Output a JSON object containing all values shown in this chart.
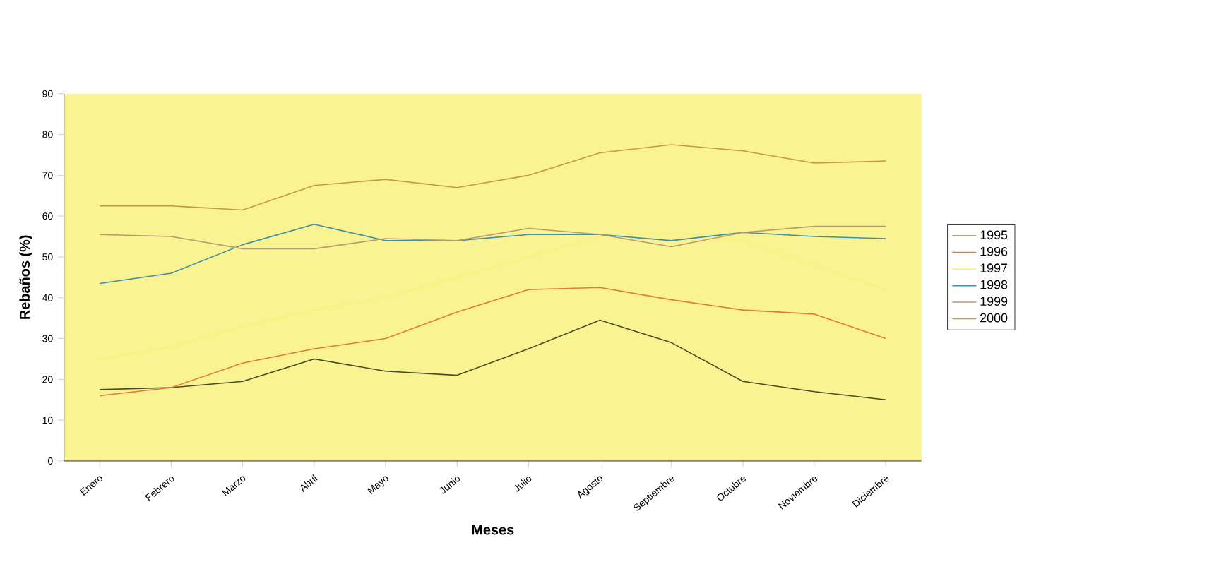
{
  "chart_data": {
    "type": "line",
    "xlabel": "Meses",
    "ylabel": "Rebaños (%)",
    "categories": [
      "Enero",
      "Febrero",
      "Marzo",
      "Abril",
      "Mayo",
      "Junio",
      "Julio",
      "Agosto",
      "Septiembre",
      "Octubre",
      "Noviembre",
      "Diciembre"
    ],
    "series": [
      {
        "name": "1995",
        "color": "#4a4a2a",
        "values": [
          17.5,
          18,
          19.5,
          25,
          22,
          21,
          27.5,
          34.5,
          29,
          19.5,
          17,
          15
        ]
      },
      {
        "name": "1996",
        "color": "#e07a3c",
        "values": [
          16,
          18,
          24,
          27.5,
          30,
          36.5,
          42,
          42.5,
          39.5,
          37,
          36,
          30
        ]
      },
      {
        "name": "1997",
        "color": "#faf27a",
        "values": [
          25,
          28,
          33,
          37,
          40,
          45,
          50,
          55,
          56,
          54,
          48,
          42
        ]
      },
      {
        "name": "1998",
        "color": "#3f8fa8",
        "values": [
          43.5,
          46,
          53,
          58,
          54,
          54,
          55.5,
          55.5,
          54,
          56,
          55,
          54.5
        ]
      },
      {
        "name": "1999",
        "color": "#b89a70",
        "values": [
          55.5,
          55,
          52,
          52,
          54.5,
          54,
          57,
          55.5,
          52.5,
          56,
          57.5,
          57.5
        ]
      },
      {
        "name": "2000",
        "color": "#c89a3c",
        "values": [
          62.5,
          62.5,
          61.5,
          67.5,
          69,
          67,
          70,
          75.5,
          77.5,
          76,
          73,
          73.5
        ]
      }
    ],
    "ylim": [
      0,
      90
    ],
    "yticks": [
      0,
      10,
      20,
      30,
      40,
      50,
      60,
      70,
      80,
      90
    ],
    "grid": false,
    "legend": "right",
    "marker": "none",
    "line_style": "solid"
  }
}
